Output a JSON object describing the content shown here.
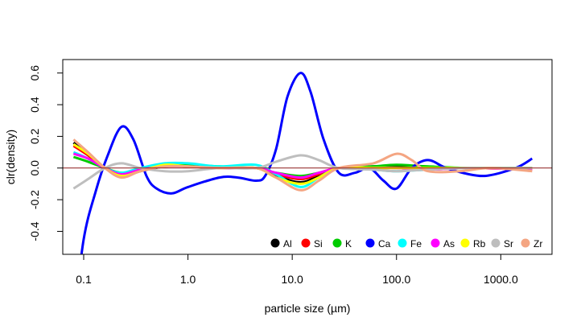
{
  "chart_data": {
    "type": "line",
    "title": "",
    "xlabel": "particle size (µm)",
    "ylabel": "clr(density)",
    "x_scale": "log",
    "xlim": [
      0.063,
      3100
    ],
    "ylim": [
      -0.545,
      0.685
    ],
    "x_ticks": [
      {
        "value": 0.1,
        "label": "0.1"
      },
      {
        "value": 1,
        "label": "1.0"
      },
      {
        "value": 10,
        "label": "10.0"
      },
      {
        "value": 100,
        "label": "100.0"
      },
      {
        "value": 1000,
        "label": "1000.0"
      }
    ],
    "y_ticks": [
      {
        "value": -0.4,
        "label": "-0.4"
      },
      {
        "value": -0.2,
        "label": "-0.2"
      },
      {
        "value": 0.0,
        "label": "0.0"
      },
      {
        "value": 0.2,
        "label": "0.2"
      },
      {
        "value": 0.4,
        "label": "0.4"
      },
      {
        "value": 0.6,
        "label": "0.6"
      }
    ],
    "reference_line": {
      "y": 0,
      "color": "#8b1a1a"
    },
    "grid": false,
    "legend_position": "bottom-right",
    "series": [
      {
        "name": "Al",
        "color": "#000000",
        "points": [
          [
            0.08,
            0.16
          ],
          [
            0.11,
            0.09
          ],
          [
            0.16,
            0.0
          ],
          [
            0.23,
            -0.05
          ],
          [
            0.35,
            -0.02
          ],
          [
            0.6,
            0.01
          ],
          [
            1.0,
            0.01
          ],
          [
            2.0,
            0.0
          ],
          [
            4.5,
            0.0
          ],
          [
            7.0,
            -0.05
          ],
          [
            12,
            -0.09
          ],
          [
            18,
            -0.05
          ],
          [
            28,
            0.0
          ],
          [
            60,
            0.01
          ],
          [
            100,
            0.01
          ],
          [
            200,
            0.0
          ],
          [
            500,
            0.0
          ],
          [
            2000,
            0.0
          ]
        ]
      },
      {
        "name": "Si",
        "color": "#ff0000",
        "points": [
          [
            0.08,
            0.14
          ],
          [
            0.11,
            0.08
          ],
          [
            0.16,
            0.0
          ],
          [
            0.23,
            -0.04
          ],
          [
            0.35,
            -0.02
          ],
          [
            0.6,
            0.02
          ],
          [
            1.0,
            0.02
          ],
          [
            2.0,
            0.0
          ],
          [
            4.5,
            0.0
          ],
          [
            7.0,
            -0.04
          ],
          [
            12,
            -0.07
          ],
          [
            18,
            -0.04
          ],
          [
            28,
            0.0
          ],
          [
            60,
            0.0
          ],
          [
            100,
            0.0
          ],
          [
            200,
            -0.01
          ],
          [
            500,
            0.0
          ],
          [
            2000,
            -0.01
          ]
        ]
      },
      {
        "name": "K",
        "color": "#00cc00",
        "points": [
          [
            0.08,
            0.07
          ],
          [
            0.11,
            0.04
          ],
          [
            0.16,
            0.0
          ],
          [
            0.23,
            -0.03
          ],
          [
            0.35,
            -0.01
          ],
          [
            0.6,
            0.02
          ],
          [
            1.0,
            0.02
          ],
          [
            2.0,
            0.01
          ],
          [
            4.5,
            0.0
          ],
          [
            7.0,
            -0.03
          ],
          [
            12,
            -0.05
          ],
          [
            18,
            -0.03
          ],
          [
            28,
            0.0
          ],
          [
            60,
            0.01
          ],
          [
            100,
            0.02
          ],
          [
            200,
            0.01
          ],
          [
            500,
            0.0
          ],
          [
            2000,
            0.0
          ]
        ]
      },
      {
        "name": "Ca",
        "color": "#0000ff",
        "points": [
          [
            0.08,
            -0.98
          ],
          [
            0.1,
            -0.45
          ],
          [
            0.13,
            -0.15
          ],
          [
            0.17,
            0.08
          ],
          [
            0.23,
            0.26
          ],
          [
            0.3,
            0.18
          ],
          [
            0.4,
            -0.05
          ],
          [
            0.5,
            -0.13
          ],
          [
            0.7,
            -0.16
          ],
          [
            1.0,
            -0.12
          ],
          [
            2.0,
            -0.06
          ],
          [
            3.0,
            -0.06
          ],
          [
            4.5,
            -0.08
          ],
          [
            5.5,
            -0.05
          ],
          [
            7.0,
            0.12
          ],
          [
            9.0,
            0.45
          ],
          [
            12,
            0.6
          ],
          [
            15,
            0.48
          ],
          [
            20,
            0.18
          ],
          [
            28,
            -0.03
          ],
          [
            40,
            -0.03
          ],
          [
            55,
            0.0
          ],
          [
            75,
            -0.08
          ],
          [
            100,
            -0.13
          ],
          [
            140,
            0.0
          ],
          [
            200,
            0.05
          ],
          [
            300,
            0.0
          ],
          [
            500,
            -0.04
          ],
          [
            700,
            -0.05
          ],
          [
            1000,
            -0.03
          ],
          [
            1500,
            0.01
          ],
          [
            2000,
            0.06
          ]
        ]
      },
      {
        "name": "Fe",
        "color": "#00ffff",
        "points": [
          [
            0.08,
            0.1
          ],
          [
            0.11,
            0.06
          ],
          [
            0.16,
            0.0
          ],
          [
            0.23,
            -0.03
          ],
          [
            0.35,
            0.0
          ],
          [
            0.6,
            0.03
          ],
          [
            1.0,
            0.03
          ],
          [
            2.0,
            0.01
          ],
          [
            4.5,
            0.02
          ],
          [
            7.0,
            -0.04
          ],
          [
            12,
            -0.12
          ],
          [
            18,
            -0.06
          ],
          [
            28,
            0.0
          ],
          [
            60,
            -0.01
          ],
          [
            100,
            -0.02
          ],
          [
            200,
            -0.01
          ],
          [
            500,
            0.0
          ],
          [
            2000,
            0.0
          ]
        ]
      },
      {
        "name": "As",
        "color": "#ff00ff",
        "points": [
          [
            0.08,
            0.09
          ],
          [
            0.11,
            0.06
          ],
          [
            0.16,
            0.0
          ],
          [
            0.23,
            -0.04
          ],
          [
            0.35,
            -0.01
          ],
          [
            0.6,
            0.01
          ],
          [
            1.0,
            0.01
          ],
          [
            2.0,
            0.0
          ],
          [
            4.5,
            0.0
          ],
          [
            7.0,
            -0.03
          ],
          [
            12,
            -0.06
          ],
          [
            18,
            -0.03
          ],
          [
            28,
            0.0
          ],
          [
            60,
            0.0
          ],
          [
            100,
            0.0
          ],
          [
            200,
            -0.01
          ],
          [
            500,
            0.0
          ],
          [
            2000,
            -0.01
          ]
        ]
      },
      {
        "name": "Rb",
        "color": "#ffff00",
        "points": [
          [
            0.08,
            0.15
          ],
          [
            0.11,
            0.09
          ],
          [
            0.16,
            0.0
          ],
          [
            0.23,
            -0.05
          ],
          [
            0.35,
            -0.02
          ],
          [
            0.6,
            0.02
          ],
          [
            1.0,
            0.01
          ],
          [
            2.0,
            0.0
          ],
          [
            4.5,
            0.0
          ],
          [
            7.0,
            -0.06
          ],
          [
            12,
            -0.1
          ],
          [
            18,
            -0.06
          ],
          [
            28,
            0.0
          ],
          [
            60,
            0.0
          ],
          [
            100,
            0.0
          ],
          [
            200,
            0.0
          ],
          [
            500,
            0.0
          ],
          [
            2000,
            0.0
          ]
        ]
      },
      {
        "name": "Sr",
        "color": "#bebebe",
        "points": [
          [
            0.08,
            -0.13
          ],
          [
            0.11,
            -0.07
          ],
          [
            0.16,
            0.0
          ],
          [
            0.23,
            0.03
          ],
          [
            0.35,
            0.0
          ],
          [
            0.6,
            -0.02
          ],
          [
            1.0,
            -0.02
          ],
          [
            2.0,
            0.0
          ],
          [
            4.5,
            0.0
          ],
          [
            7.0,
            0.04
          ],
          [
            12,
            0.08
          ],
          [
            18,
            0.05
          ],
          [
            28,
            0.0
          ],
          [
            60,
            -0.01
          ],
          [
            100,
            -0.02
          ],
          [
            200,
            -0.01
          ],
          [
            500,
            0.0
          ],
          [
            2000,
            0.0
          ]
        ]
      },
      {
        "name": "Zr",
        "color": "#f4a582",
        "points": [
          [
            0.08,
            0.18
          ],
          [
            0.11,
            0.1
          ],
          [
            0.16,
            0.0
          ],
          [
            0.23,
            -0.06
          ],
          [
            0.35,
            -0.02
          ],
          [
            0.6,
            0.01
          ],
          [
            1.0,
            0.01
          ],
          [
            2.0,
            0.0
          ],
          [
            4.5,
            0.0
          ],
          [
            7.0,
            -0.06
          ],
          [
            12,
            -0.14
          ],
          [
            18,
            -0.08
          ],
          [
            28,
            0.0
          ],
          [
            60,
            0.03
          ],
          [
            100,
            0.09
          ],
          [
            140,
            0.05
          ],
          [
            200,
            -0.02
          ],
          [
            400,
            -0.02
          ],
          [
            800,
            0.0
          ],
          [
            2000,
            -0.02
          ]
        ]
      }
    ]
  }
}
